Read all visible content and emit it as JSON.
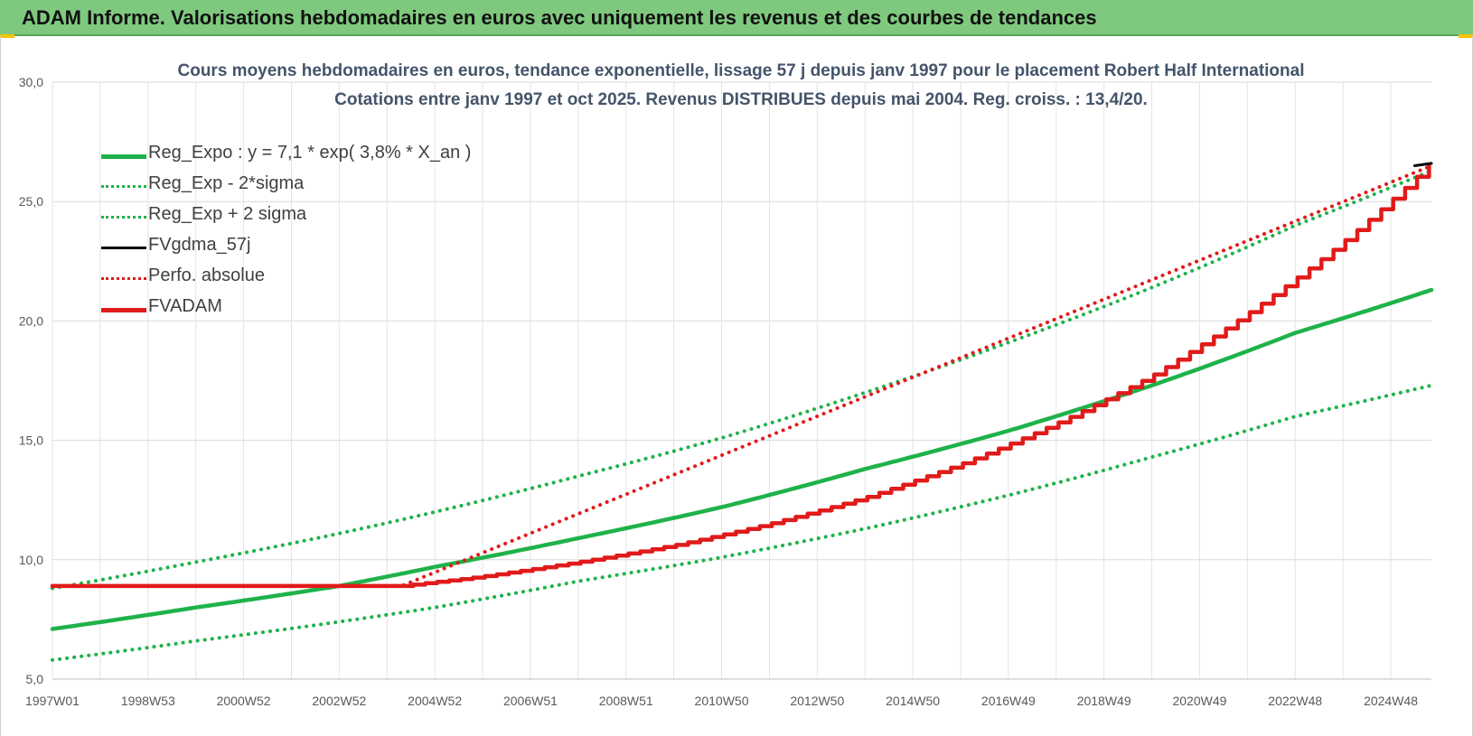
{
  "header": {
    "title": "ADAM Informe. Valorisations hebdomadaires en euros avec uniquement les revenus et des courbes de tendances"
  },
  "chart_data": {
    "type": "line",
    "title": "Cours moyens hebdomadaires en euros, tendance exponentielle, lissage 57 j depuis janv 1997 pour le placement Robert Half International",
    "subtitle": "Cotations entre janv 1997 et oct 2025. Revenus DISTRIBUES depuis mai 2004. Reg. croiss. : 13,4/20.",
    "xlabel": "",
    "ylabel": "",
    "ylim": [
      5,
      30
    ],
    "yticks": [
      "5,0",
      "10,0",
      "15,0",
      "20,0",
      "25,0",
      "30,0"
    ],
    "x_tick_labels": [
      "1997W01",
      "1998W53",
      "2000W52",
      "2002W52",
      "2004W52",
      "2006W51",
      "2008W51",
      "2010W50",
      "2012W50",
      "2014W50",
      "2016W49",
      "2018W49",
      "2020W49",
      "2022W48",
      "2024W48"
    ],
    "x_tick_years": [
      1997.0,
      1999.0,
      2001.0,
      2003.0,
      2005.0,
      2007.0,
      2009.0,
      2011.0,
      2013.0,
      2015.0,
      2017.0,
      2019.0,
      2021.0,
      2023.0,
      2025.0
    ],
    "xlim": [
      1997.0,
      2025.85
    ],
    "grid": true,
    "legend_position": "top-left",
    "series": [
      {
        "name": "Reg_Expo : y = 7,1 * exp( 3,8% *  X_an )",
        "color": "#1fb24a",
        "style": "solid",
        "points": [
          [
            1997.0,
            7.1
          ],
          [
            2000.0,
            8.0
          ],
          [
            2003.0,
            8.9
          ],
          [
            2005.0,
            9.7
          ],
          [
            2008.0,
            10.9
          ],
          [
            2011.0,
            12.2
          ],
          [
            2014.0,
            13.8
          ],
          [
            2017.0,
            15.4
          ],
          [
            2020.0,
            17.3
          ],
          [
            2023.0,
            19.5
          ],
          [
            2025.85,
            21.3
          ]
        ]
      },
      {
        "name": "Reg_Exp - 2*sigma",
        "color": "#1fb24a",
        "style": "dotted",
        "points": [
          [
            1997.0,
            5.8
          ],
          [
            2000.0,
            6.6
          ],
          [
            2003.0,
            7.4
          ],
          [
            2005.0,
            8.0
          ],
          [
            2008.0,
            9.1
          ],
          [
            2011.0,
            10.1
          ],
          [
            2014.0,
            11.3
          ],
          [
            2017.0,
            12.7
          ],
          [
            2020.0,
            14.3
          ],
          [
            2023.0,
            16.0
          ],
          [
            2025.85,
            17.3
          ]
        ]
      },
      {
        "name": "Reg_Exp + 2 sigma",
        "color": "#1fb24a",
        "style": "dotted",
        "points": [
          [
            1997.0,
            8.8
          ],
          [
            2000.0,
            9.9
          ],
          [
            2003.0,
            11.1
          ],
          [
            2005.0,
            12.0
          ],
          [
            2008.0,
            13.5
          ],
          [
            2011.0,
            15.1
          ],
          [
            2014.0,
            17.0
          ],
          [
            2017.0,
            19.1
          ],
          [
            2020.0,
            21.4
          ],
          [
            2023.0,
            24.0
          ],
          [
            2025.85,
            26.3
          ]
        ]
      },
      {
        "name": "FVgdma_57j",
        "color": "#000000",
        "style": "solid",
        "points": [
          [
            2025.5,
            26.5
          ],
          [
            2025.85,
            26.6
          ]
        ]
      },
      {
        "name": "Perfo. absolue",
        "color": "#e11a1a",
        "style": "dotted",
        "points": [
          [
            1997.0,
            8.9
          ],
          [
            2004.3,
            8.9
          ],
          [
            2025.85,
            26.5
          ]
        ]
      },
      {
        "name": "FVADAM",
        "color": "#e11a1a",
        "style": "solid",
        "stepped": true,
        "points": [
          [
            1997.0,
            8.9
          ],
          [
            2004.3,
            8.9
          ],
          [
            2006.0,
            9.3
          ],
          [
            2008.0,
            9.9
          ],
          [
            2010.0,
            10.6
          ],
          [
            2012.0,
            11.5
          ],
          [
            2014.0,
            12.6
          ],
          [
            2016.0,
            14.0
          ],
          [
            2018.0,
            15.7
          ],
          [
            2020.0,
            17.7
          ],
          [
            2022.0,
            20.3
          ],
          [
            2024.0,
            23.3
          ],
          [
            2025.85,
            26.6
          ]
        ]
      }
    ]
  }
}
